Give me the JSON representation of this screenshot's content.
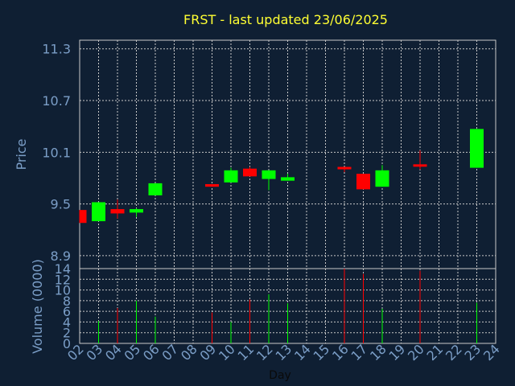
{
  "chart_data": {
    "type": "candlestick",
    "title": "FRST - last updated 23/06/2025",
    "xlabel": "Day",
    "price_ylabel": "Price",
    "volume_ylabel": "Volume (0000)",
    "x_ticks": [
      "02",
      "03",
      "04",
      "05",
      "06",
      "07",
      "08",
      "09",
      "10",
      "11",
      "12",
      "13",
      "14",
      "15",
      "16",
      "17",
      "18",
      "19",
      "20",
      "21",
      "22",
      "23",
      "24"
    ],
    "price_ticks": [
      "8.9",
      "9.5",
      "10.1",
      "10.7",
      "11.3"
    ],
    "volume_ticks": [
      "0",
      "2",
      "4",
      "6",
      "8",
      "10",
      "12",
      "14"
    ],
    "price_ylim": [
      8.75,
      11.4
    ],
    "volume_ylim": [
      0,
      14
    ],
    "grid": true,
    "colors": {
      "up": "#00ff00",
      "down": "#ff0000",
      "background": "#0f1f33",
      "grid": "#c8c8c8",
      "title": "#ffff33",
      "ticks": "#7b9ec7"
    },
    "candles": [
      {
        "day": "02",
        "open": 9.43,
        "close": 9.28,
        "high": 9.43,
        "low": 9.28,
        "volume": 0
      },
      {
        "day": "03",
        "open": 9.3,
        "close": 9.52,
        "high": 9.52,
        "low": 9.3,
        "volume": 4.2
      },
      {
        "day": "04",
        "open": 9.44,
        "close": 9.39,
        "high": 9.55,
        "low": 9.33,
        "volume": 6.6
      },
      {
        "day": "05",
        "open": 9.4,
        "close": 9.44,
        "high": 9.45,
        "low": 9.35,
        "volume": 8.0
      },
      {
        "day": "06",
        "open": 9.6,
        "close": 9.74,
        "high": 9.74,
        "low": 9.6,
        "volume": 5.0
      },
      {
        "day": "09",
        "open": 9.73,
        "close": 9.7,
        "high": 9.73,
        "low": 9.7,
        "volume": 5.8
      },
      {
        "day": "10",
        "open": 9.75,
        "close": 9.89,
        "high": 9.92,
        "low": 9.75,
        "volume": 4.0
      },
      {
        "day": "11",
        "open": 9.91,
        "close": 9.82,
        "high": 9.93,
        "low": 9.82,
        "volume": 8.2
      },
      {
        "day": "12",
        "open": 9.79,
        "close": 9.89,
        "high": 9.89,
        "low": 9.66,
        "volume": 9.2
      },
      {
        "day": "13",
        "open": 9.77,
        "close": 9.81,
        "high": 9.85,
        "low": 9.77,
        "volume": 7.5
      },
      {
        "day": "16",
        "open": 9.93,
        "close": 9.92,
        "high": 9.93,
        "low": 9.87,
        "volume": 14.0
      },
      {
        "day": "17",
        "open": 9.85,
        "close": 9.67,
        "high": 9.85,
        "low": 9.67,
        "volume": 13.0
      },
      {
        "day": "18",
        "open": 9.7,
        "close": 9.89,
        "high": 9.95,
        "low": 9.7,
        "volume": 6.5
      },
      {
        "day": "20",
        "open": 9.96,
        "close": 9.95,
        "high": 10.12,
        "low": 9.9,
        "volume": 13.6
      },
      {
        "day": "23",
        "open": 9.92,
        "close": 10.37,
        "high": 10.37,
        "low": 9.92,
        "volume": 7.6
      }
    ]
  }
}
